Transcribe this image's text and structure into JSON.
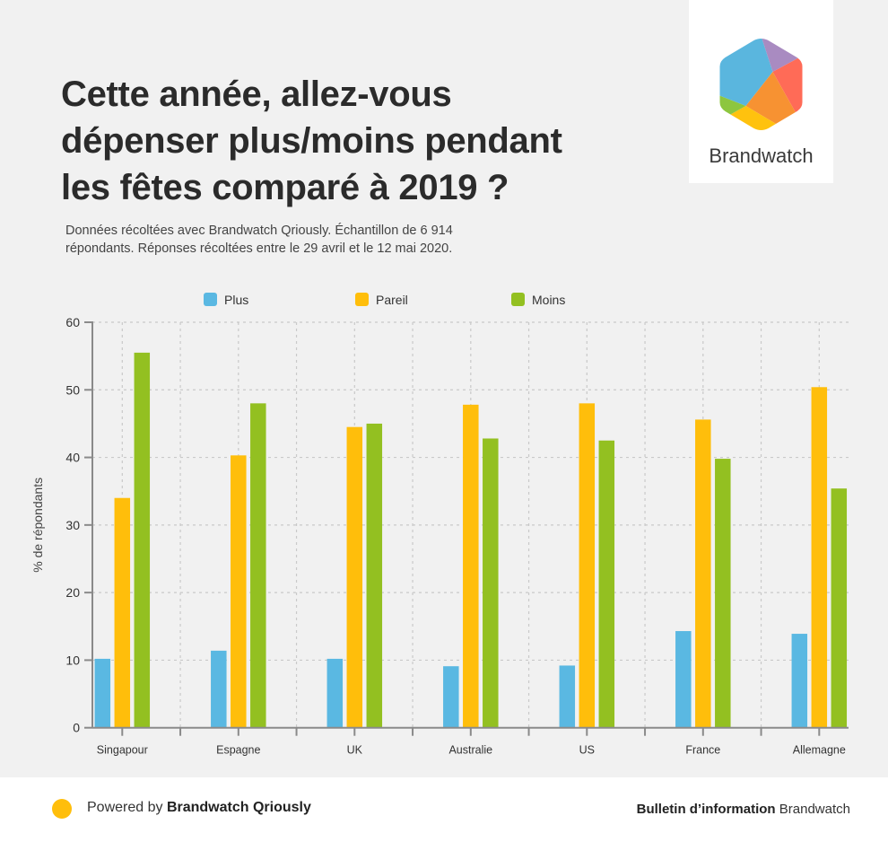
{
  "header": {
    "title_lines": [
      "Cette année, allez-vous",
      "dépenser plus/moins pendant",
      "les fêtes comparé à 2019 ?"
    ],
    "subtitle_lines": [
      "Données récoltées avec Brandwatch Qriously. Échantillon de 6 914",
      "répondants. Réponses récoltées entre le 29 avril et le 12 mai 2020."
    ]
  },
  "logo": {
    "text": "Brandwatch",
    "icon": "brandwatch-hexagon-logo",
    "colors": {
      "blue": "#5ab6de",
      "purple": "#a98bc1",
      "red": "#ff6b57",
      "orange": "#f79232",
      "yellow": "#ffc20e",
      "green": "#8dc63f"
    }
  },
  "chart_data": {
    "type": "bar",
    "title": "Cette année, allez-vous dépenser plus/moins pendant les fêtes comparé à 2019 ?",
    "xlabel": "",
    "ylabel": "% de répondants",
    "ylim": [
      0,
      60
    ],
    "yticks": [
      0,
      10,
      20,
      30,
      40,
      50,
      60
    ],
    "grid": true,
    "legend_position": "top-center",
    "categories": [
      "Singapour",
      "Espagne",
      "UK",
      "Australie",
      "US",
      "France",
      "Allemagne"
    ],
    "series": [
      {
        "name": "Plus",
        "color": "#5ab8e2",
        "values": [
          10.2,
          11.4,
          10.2,
          9.1,
          9.2,
          14.3,
          13.9
        ]
      },
      {
        "name": "Pareil",
        "color": "#ffbe0b",
        "values": [
          34.0,
          40.3,
          44.5,
          47.8,
          48.0,
          45.6,
          50.4
        ]
      },
      {
        "name": "Moins",
        "color": "#93c021",
        "values": [
          55.5,
          48.0,
          45.0,
          42.8,
          42.5,
          39.8,
          35.4
        ]
      }
    ]
  },
  "footer": {
    "powered_prefix": "Powered by ",
    "powered_brand": "Brandwatch Qriously",
    "right_bold": "Bulletin d’information",
    "right_normal": " Brandwatch",
    "dot_color": "#ffbe0b"
  }
}
